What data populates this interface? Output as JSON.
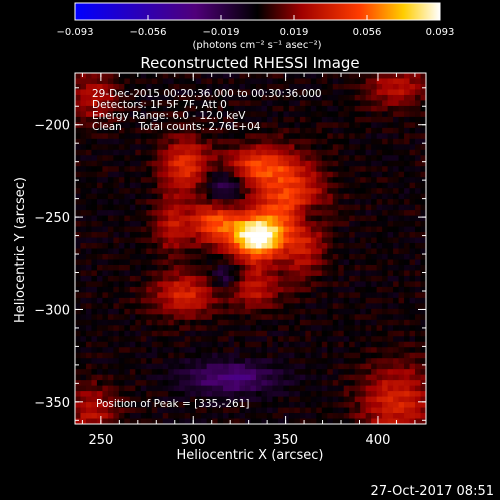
{
  "chart_data": {
    "type": "heatmap",
    "title": "Reconstructed RHESSI Image",
    "xlabel": "Heliocentric X (arcsec)",
    "ylabel": "Heliocentric Y (arcsec)",
    "xlim": [
      236,
      426
    ],
    "ylim": [
      -362,
      -172
    ],
    "x_ticks": [
      250,
      300,
      350,
      400
    ],
    "y_ticks": [
      -200,
      -250,
      -300,
      -350
    ],
    "x_tick_labels": [
      "250",
      "300",
      "350",
      "400"
    ],
    "y_tick_labels": [
      "−200",
      "−250",
      "−300",
      "−350"
    ],
    "colorbar": {
      "min": -0.093,
      "max": 0.093,
      "tick_labels": [
        "−0.093",
        "−0.056",
        "−0.019",
        "0.019",
        "0.056",
        "0.093"
      ],
      "units_label": "(photons cm⁻² s⁻¹ asec⁻²)",
      "colormap": [
        "#0000ff",
        "#50007a",
        "#000000",
        "#a00000",
        "#ff3c00",
        "#ffcd00",
        "#ffffff"
      ]
    },
    "annotations": [
      "29-Dec-2015 00:20:36.000 to 00:30:36.000",
      "Detectors: 1F 5F 7F, Att 0",
      "Energy Range: 6.0 - 12.0 keV",
      "Clean     Total counts: 2.76E+04"
    ],
    "peak_label": "Position of Peak = [335,-261]",
    "peak": {
      "x": 335,
      "y": -261
    },
    "footer_date": "27-Oct-2017 08:51"
  }
}
